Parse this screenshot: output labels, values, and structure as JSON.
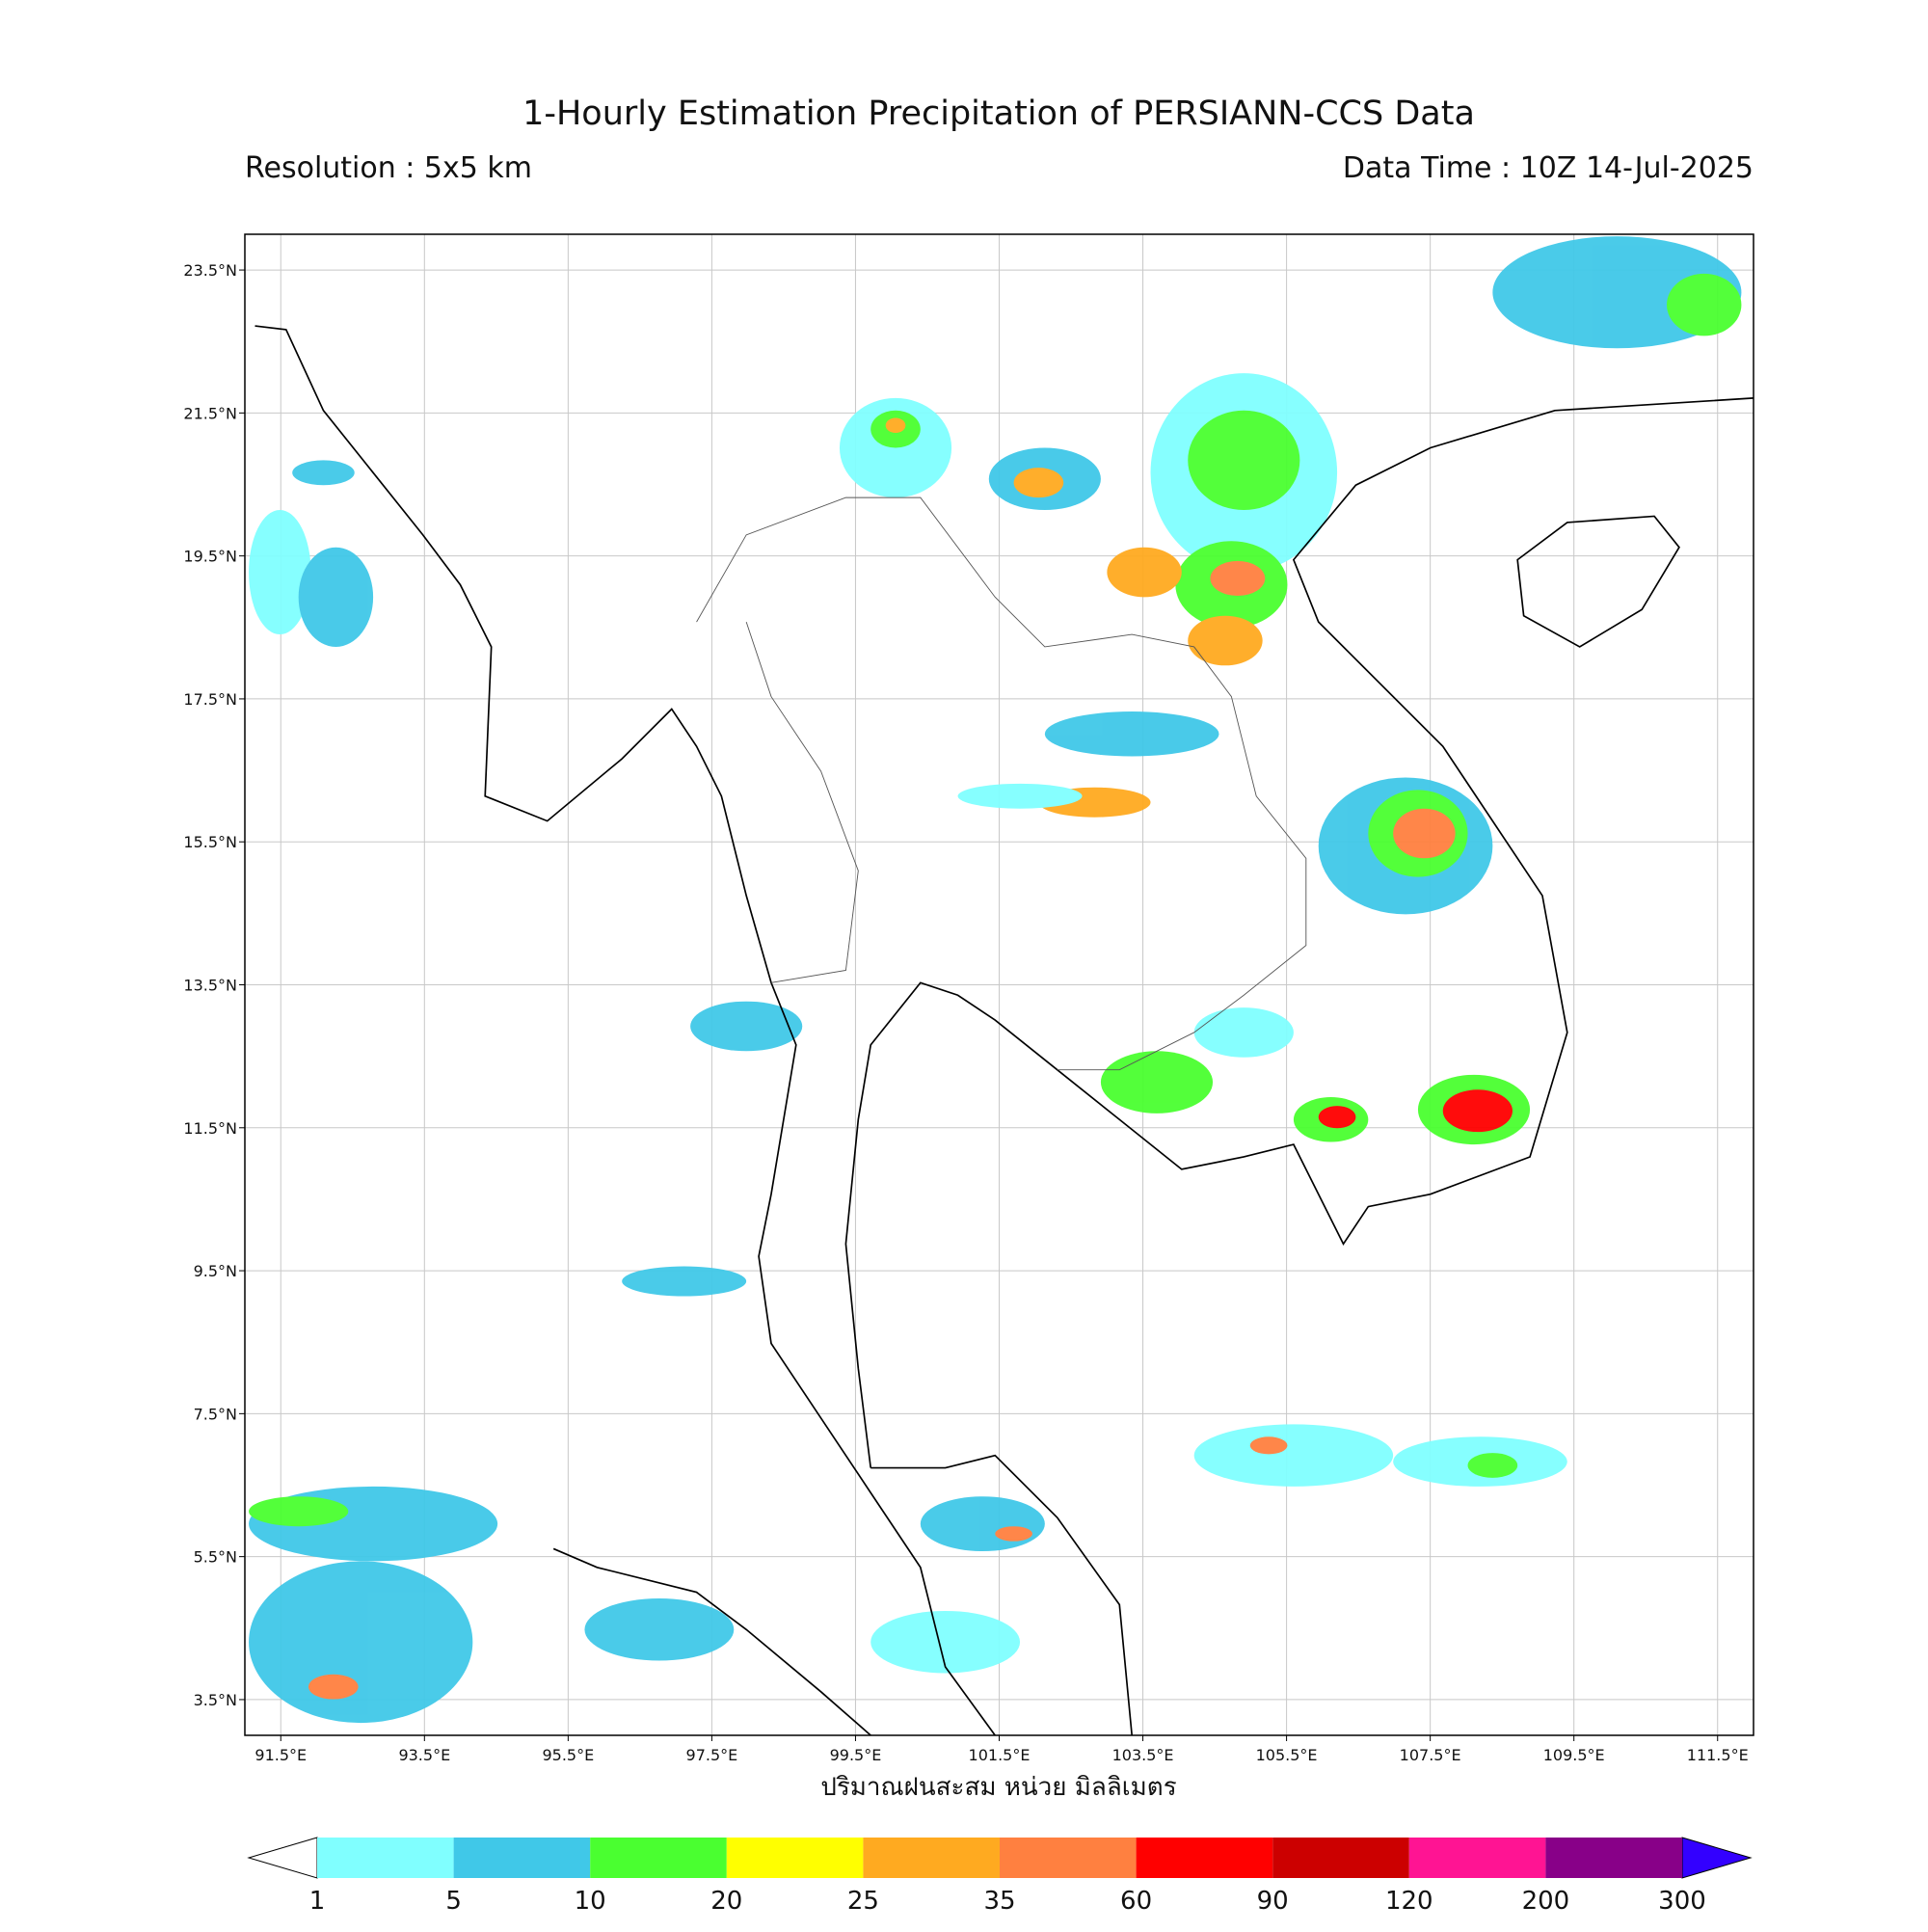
{
  "title": "1-Hourly Estimation Precipitation of PERSIANN-CCS Data",
  "resolution": "Resolution : 5x5 km",
  "data_time": "Data Time : 10Z 14-Jul-2025",
  "map": {
    "xlim": [
      91,
      112
    ],
    "ylim": [
      3,
      24
    ],
    "grid": true,
    "xticks": [
      {
        "value": 91.5,
        "label": "91.5°E"
      },
      {
        "value": 93.5,
        "label": "93.5°E"
      },
      {
        "value": 95.5,
        "label": "95.5°E"
      },
      {
        "value": 97.5,
        "label": "97.5°E"
      },
      {
        "value": 99.5,
        "label": "99.5°E"
      },
      {
        "value": 101.5,
        "label": "101.5°E"
      },
      {
        "value": 103.5,
        "label": "103.5°E"
      },
      {
        "value": 105.5,
        "label": "105.5°E"
      },
      {
        "value": 107.5,
        "label": "107.5°E"
      },
      {
        "value": 109.5,
        "label": "109.5°E"
      },
      {
        "value": 111.5,
        "label": "111.5°E"
      }
    ],
    "yticks": [
      {
        "value": 3.5,
        "label": "3.5°N"
      },
      {
        "value": 5.5,
        "label": "5.5°N"
      },
      {
        "value": 7.5,
        "label": "7.5°N"
      },
      {
        "value": 9.5,
        "label": "9.5°N"
      },
      {
        "value": 11.5,
        "label": "11.5°N"
      },
      {
        "value": 13.5,
        "label": "13.5°N"
      },
      {
        "value": 15.5,
        "label": "15.5°N"
      },
      {
        "value": 17.5,
        "label": "17.5°N"
      },
      {
        "value": 19.5,
        "label": "19.5°N"
      },
      {
        "value": 21.5,
        "label": "21.5°N"
      },
      {
        "value": 23.5,
        "label": "23.5°N"
      }
    ]
  },
  "xlabel": "ปริมาณฝนสะสม หน่วย มิลลิเมตร",
  "colorbar": {
    "levels": [
      1,
      5,
      10,
      20,
      25,
      35,
      60,
      90,
      120,
      200,
      300
    ],
    "colors": [
      "#80ffff",
      "#40c8e8",
      "#4aff30",
      "#ffff00",
      "#ffaa20",
      "#ff8040",
      "#ff0000",
      "#cc0000",
      "#ff1493",
      "#880088"
    ],
    "under_color": "#ffffff",
    "over_color": "#3300ff"
  }
}
